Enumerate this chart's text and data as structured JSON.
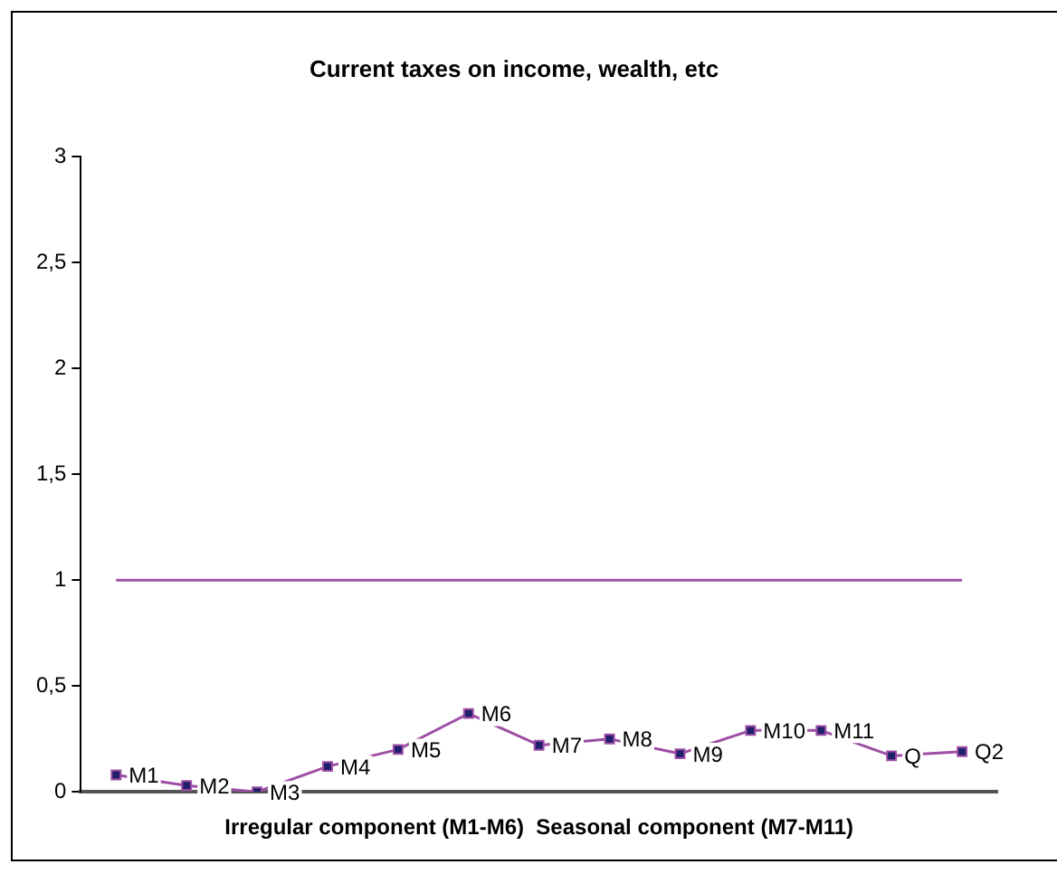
{
  "chart_data": {
    "type": "line",
    "title": "Current taxes on income, wealth, etc",
    "xlabel": "Irregular component (M1-M6)  Seasonal component (M7-M11)",
    "categories": [
      "M1",
      "M2",
      "M3",
      "M4",
      "M5",
      "M6",
      "M7",
      "M8",
      "M9",
      "M10",
      "M11",
      "Q",
      "Q2"
    ],
    "series": [
      {
        "color": "#9e4fa5",
        "values": [
          0.08,
          0.03,
          0,
          0.12,
          0.2,
          0.37,
          0.22,
          0.25,
          0.18,
          0.29,
          0.29,
          0.17,
          0.19
        ]
      }
    ],
    "ref_lines": [
      {
        "axis": "y",
        "value": 1,
        "color": "#9e4fa5"
      }
    ],
    "ylim": [
      0,
      3
    ],
    "yticks": [
      0,
      {
        "value": 0.5,
        "label": "0,5"
      },
      1,
      {
        "value": 1.5,
        "label": "1,5"
      },
      2,
      {
        "value": 2.5,
        "label": "2,5"
      },
      3
    ],
    "tick_labels": "y",
    "marker": "square",
    "grid": false,
    "legend": false
  }
}
